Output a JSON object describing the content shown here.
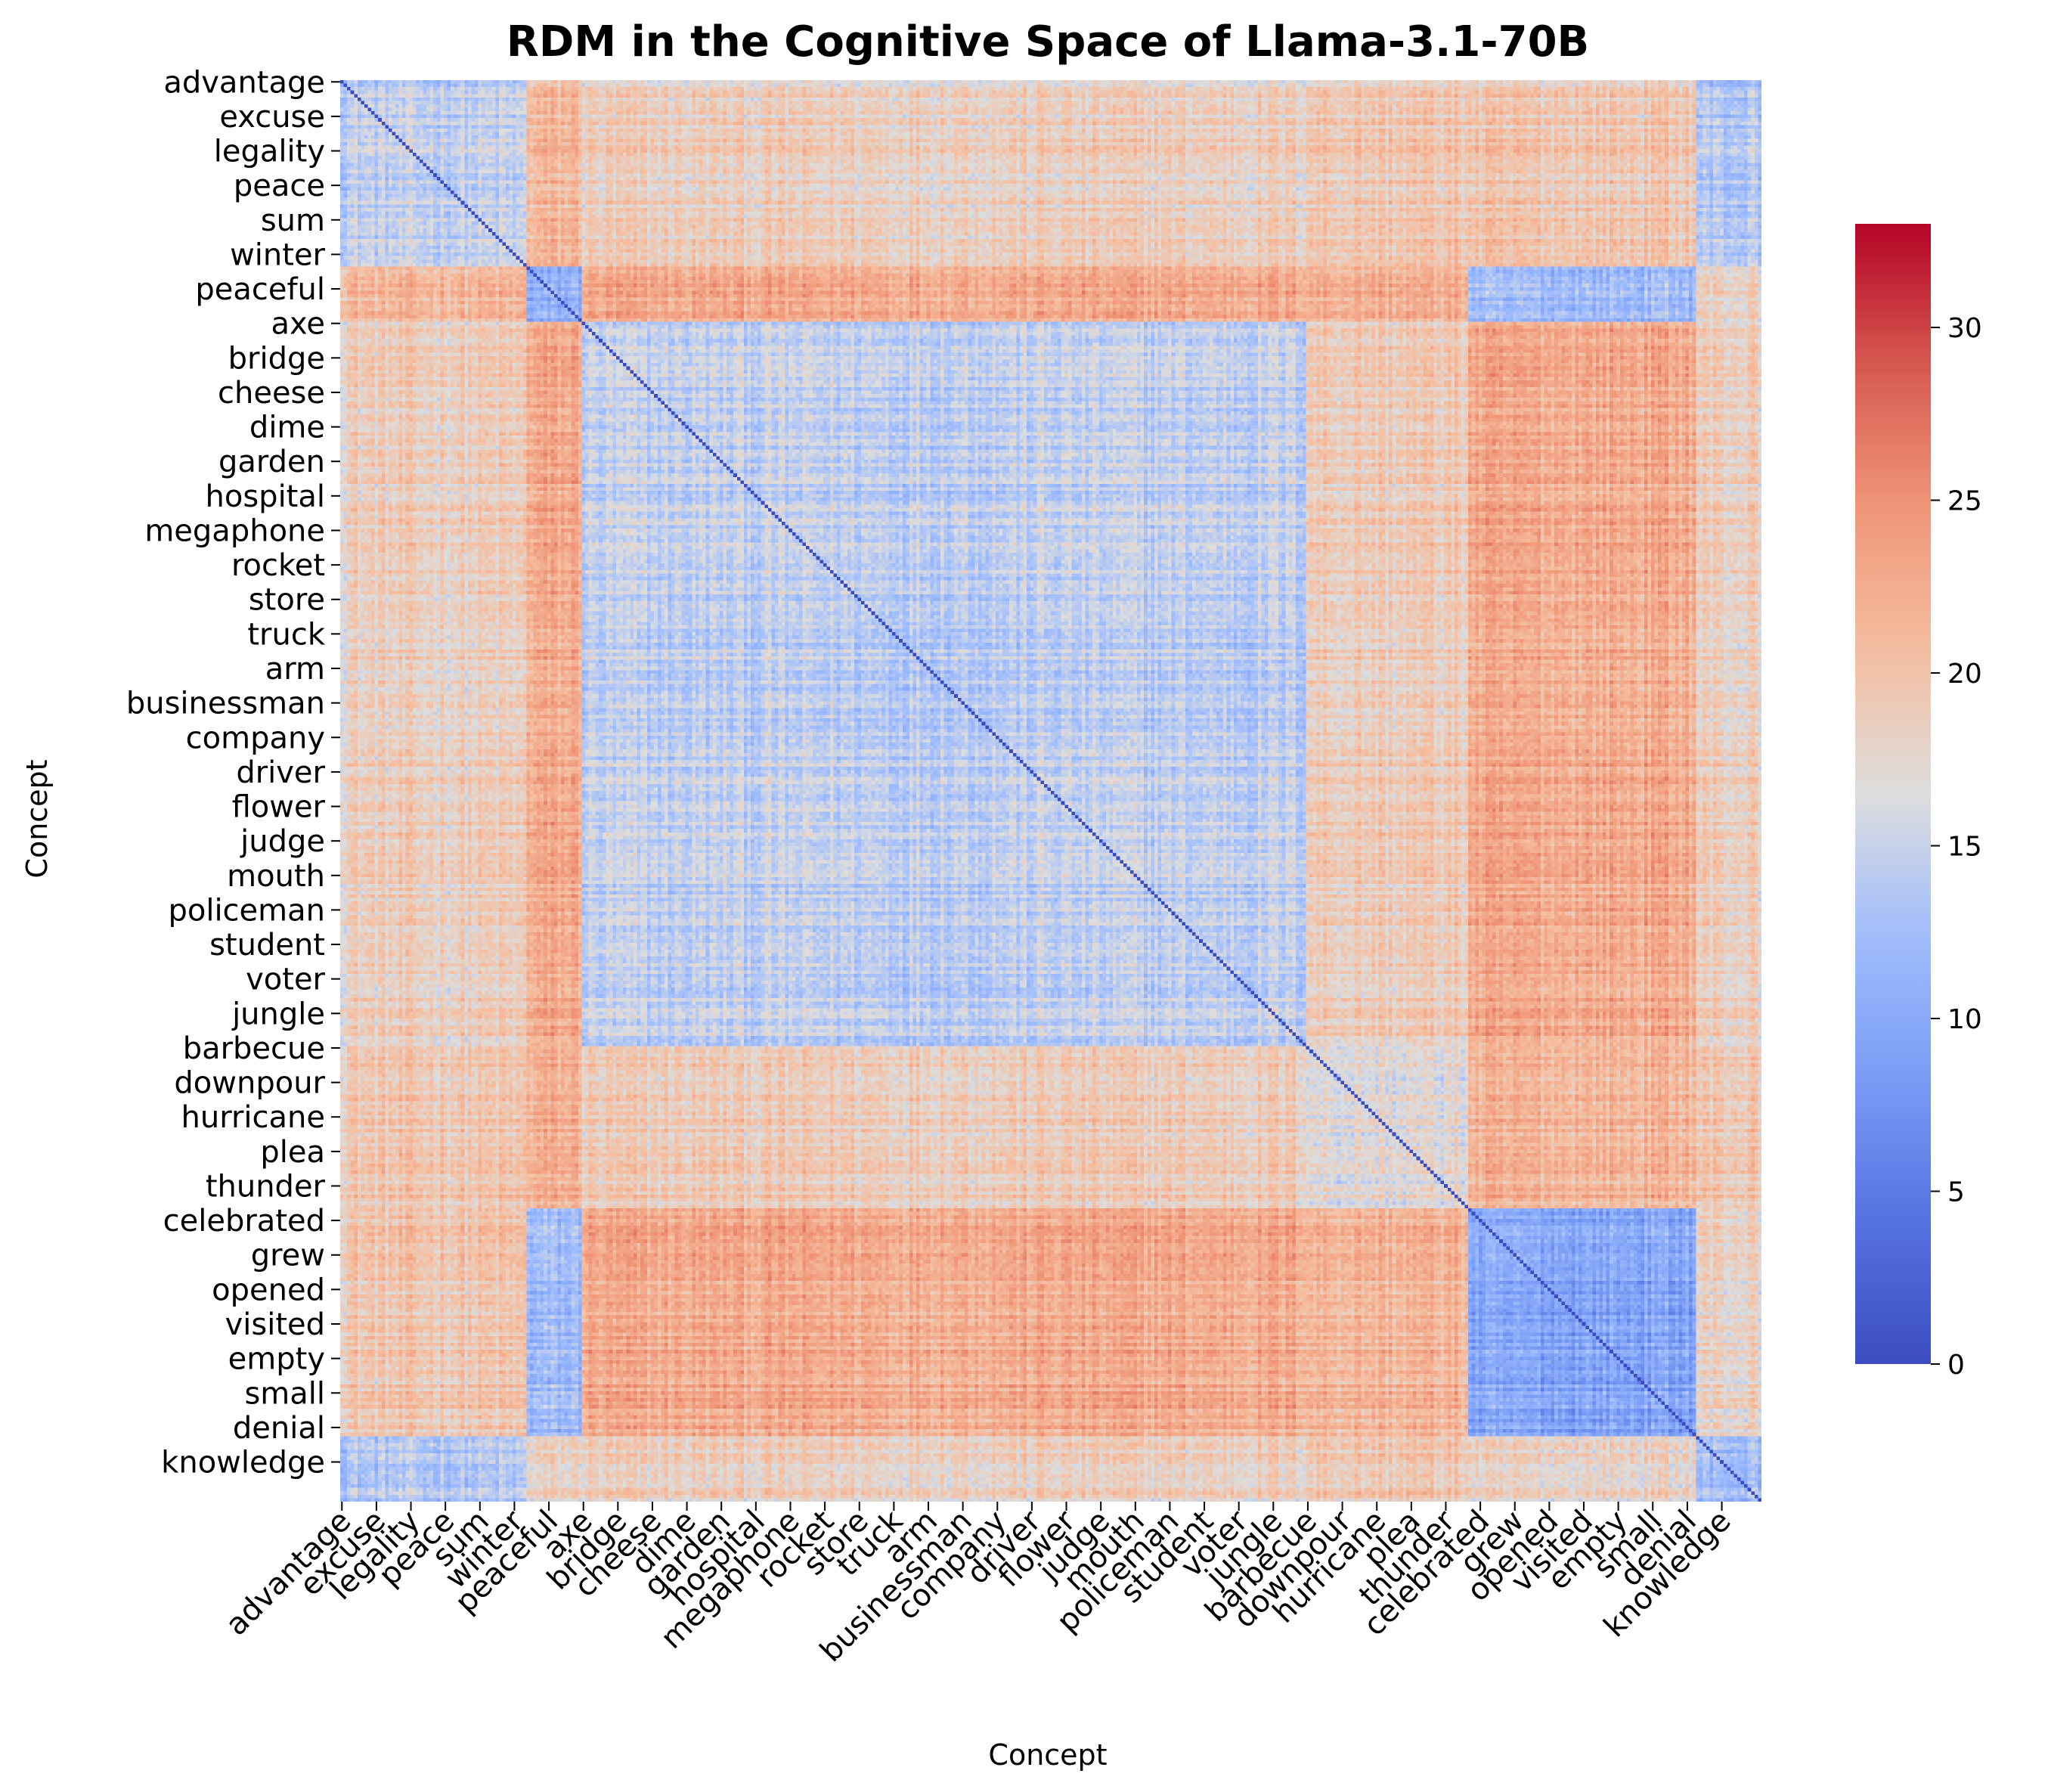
{
  "chart_data": {
    "type": "heatmap",
    "title": "RDM in the Cognitive Space of Llama-3.1-70B",
    "xlabel": "Concept",
    "ylabel": "Concept",
    "colormap": "coolwarm",
    "color_range": [
      0,
      33
    ],
    "colorbar_ticks": [
      0,
      5,
      10,
      15,
      20,
      25,
      30
    ],
    "tick_labels": [
      "advantage",
      "excuse",
      "legality",
      "peace",
      "sum",
      "winter",
      "peaceful",
      "axe",
      "bridge",
      "cheese",
      "dime",
      "garden",
      "hospital",
      "megaphone",
      "rocket",
      "store",
      "truck",
      "arm",
      "businessman",
      "company",
      "driver",
      "flower",
      "judge",
      "mouth",
      "policeman",
      "student",
      "voter",
      "jungle",
      "barbecue",
      "downpour",
      "hurricane",
      "plea",
      "thunder",
      "celebrated",
      "grew",
      "opened",
      "visited",
      "empty",
      "small",
      "denial",
      "knowledge"
    ],
    "n_concepts": 412,
    "tick_interval": 10,
    "diagonal_value": 0,
    "blocks": [
      {
        "name": "A",
        "first_label": "advantage",
        "count": 54
      },
      {
        "name": "B",
        "first_label": "peaceful",
        "count": 16
      },
      {
        "name": "C",
        "first_label": "axe",
        "count": 210
      },
      {
        "name": "D",
        "first_label": "barbecue",
        "count": 47
      },
      {
        "name": "E",
        "first_label": "celebrated",
        "count": 66
      },
      {
        "name": "F",
        "first_label": "denial",
        "count": 19
      }
    ],
    "block_mean_distances": [
      [
        14.5,
        21.0,
        18.5,
        19.5,
        19.5,
        13.5
      ],
      [
        21.0,
        10.5,
        22.5,
        22.0,
        12.0,
        18.0
      ],
      [
        18.5,
        22.5,
        14.5,
        19.0,
        22.5,
        18.5
      ],
      [
        19.5,
        22.0,
        19.0,
        17.0,
        21.5,
        19.5
      ],
      [
        19.5,
        12.0,
        22.5,
        21.5,
        9.5,
        18.0
      ],
      [
        13.5,
        18.0,
        18.5,
        19.5,
        18.0,
        12.5
      ]
    ]
  }
}
